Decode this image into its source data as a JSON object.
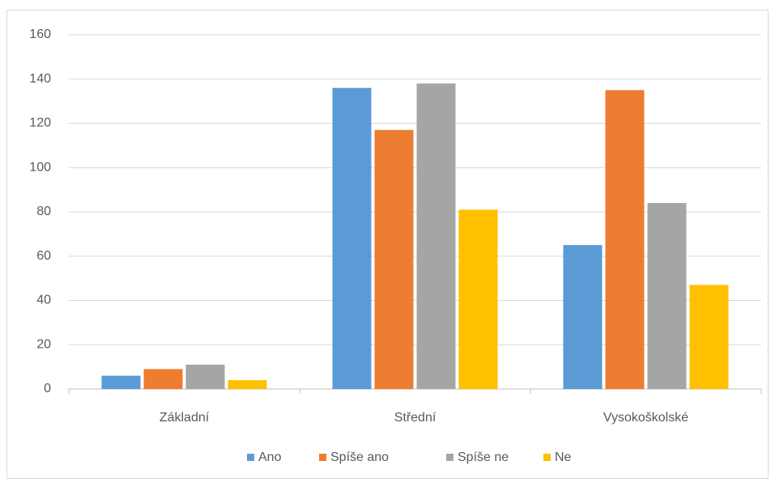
{
  "chart_data": {
    "type": "bar",
    "categories": [
      "Základní",
      "Střední",
      "Vysokoškolské"
    ],
    "series": [
      {
        "name": "Ano",
        "color": "#5b9bd5",
        "values": [
          6,
          136,
          65
        ]
      },
      {
        "name": "Spíše ano",
        "color": "#ed7d31",
        "values": [
          9,
          117,
          135
        ]
      },
      {
        "name": "Spíše ne",
        "color": "#a5a5a5",
        "values": [
          11,
          138,
          84
        ]
      },
      {
        "name": "Ne",
        "color": "#ffc000",
        "values": [
          4,
          81,
          47
        ]
      }
    ],
    "ylim": [
      0,
      160
    ],
    "yticks": [
      0,
      20,
      40,
      60,
      80,
      100,
      120,
      140,
      160
    ],
    "grid": true,
    "legend": "bottom"
  }
}
